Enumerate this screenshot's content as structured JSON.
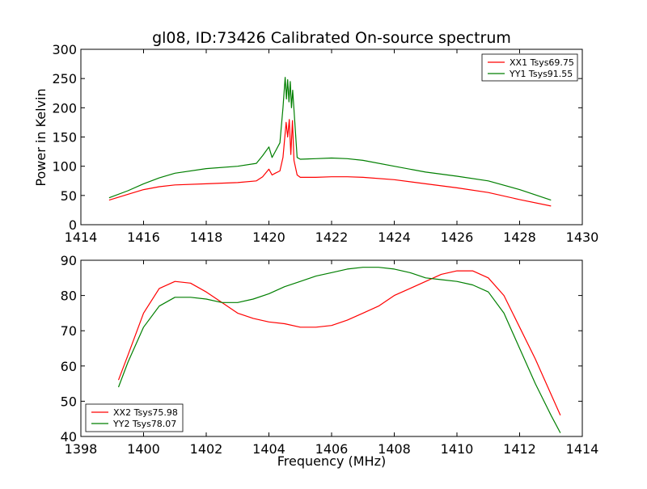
{
  "title": "gl08, ID:73426 Calibrated On-source spectrum",
  "colors": {
    "red": "#ff0000",
    "green": "#007f00"
  },
  "chart_data": [
    {
      "type": "line",
      "title": "gl08, ID:73426 Calibrated On-source spectrum",
      "xlabel": "",
      "ylabel": "Power in Kelvin",
      "xlim": [
        1414,
        1430
      ],
      "ylim": [
        0,
        300
      ],
      "xticks": [
        "1414",
        "1416",
        "1418",
        "1420",
        "1422",
        "1424",
        "1426",
        "1428",
        "1430"
      ],
      "yticks": [
        "0",
        "50",
        "100",
        "150",
        "200",
        "250",
        "300"
      ],
      "grid": false,
      "legend_position": "top-right",
      "series": [
        {
          "name": "XX1 Tsys69.75",
          "color": "#ff0000",
          "x": [
            1414.9,
            1415.5,
            1416,
            1416.5,
            1417,
            1418,
            1419,
            1419.6,
            1419.8,
            1420.0,
            1420.1,
            1420.2,
            1420.35,
            1420.45,
            1420.55,
            1420.6,
            1420.65,
            1420.7,
            1420.75,
            1420.8,
            1420.9,
            1421.0,
            1421.5,
            1422,
            1422.5,
            1423,
            1424,
            1425,
            1426,
            1427,
            1428,
            1429
          ],
          "y": [
            42,
            52,
            60,
            65,
            68,
            70,
            72,
            75,
            82,
            95,
            85,
            88,
            92,
            115,
            175,
            150,
            180,
            120,
            178,
            110,
            85,
            81,
            81,
            82,
            82,
            81,
            77,
            70,
            63,
            55,
            43,
            32
          ]
        },
        {
          "name": "YY1 Tsys91.55",
          "color": "#007f00",
          "x": [
            1414.9,
            1415.5,
            1416,
            1416.5,
            1417,
            1418,
            1419,
            1419.6,
            1419.8,
            1420.0,
            1420.1,
            1420.2,
            1420.35,
            1420.45,
            1420.52,
            1420.56,
            1420.6,
            1420.64,
            1420.68,
            1420.72,
            1420.76,
            1420.82,
            1420.9,
            1421.0,
            1421.5,
            1422,
            1422.5,
            1423,
            1424,
            1425,
            1426,
            1427,
            1428,
            1429
          ],
          "y": [
            46,
            58,
            70,
            80,
            88,
            96,
            100,
            105,
            118,
            133,
            115,
            125,
            140,
            200,
            252,
            215,
            248,
            210,
            245,
            200,
            230,
            180,
            115,
            112,
            113,
            114,
            113,
            110,
            100,
            90,
            83,
            75,
            60,
            42
          ]
        }
      ]
    },
    {
      "type": "line",
      "title": "",
      "xlabel": "Frequency (MHz)",
      "ylabel": "",
      "xlim": [
        1398,
        1414
      ],
      "ylim": [
        40,
        90
      ],
      "xticks": [
        "1398",
        "1400",
        "1402",
        "1404",
        "1406",
        "1408",
        "1410",
        "1412",
        "1414"
      ],
      "yticks": [
        "40",
        "50",
        "60",
        "70",
        "80",
        "90"
      ],
      "grid": false,
      "legend_position": "bottom-left",
      "series": [
        {
          "name": "XX2 Tsys75.98",
          "color": "#ff0000",
          "x": [
            1399.2,
            1399.5,
            1400,
            1400.5,
            1401,
            1401.5,
            1402,
            1402.5,
            1403,
            1403.5,
            1404,
            1404.5,
            1405,
            1405.5,
            1406,
            1406.5,
            1407,
            1407.5,
            1408,
            1408.5,
            1409,
            1409.5,
            1410,
            1410.5,
            1411,
            1411.5,
            1412,
            1412.5,
            1413,
            1413.3
          ],
          "y": [
            56,
            63,
            75,
            82,
            84,
            83.5,
            81,
            78,
            75,
            73.5,
            72.5,
            72,
            71,
            71,
            71.5,
            73,
            75,
            77,
            80,
            82,
            84,
            86,
            87,
            87,
            85,
            80,
            71,
            62,
            52,
            46
          ]
        },
        {
          "name": "YY2 Tsys78.07",
          "color": "#007f00",
          "x": [
            1399.2,
            1399.5,
            1400,
            1400.5,
            1401,
            1401.5,
            1402,
            1402.5,
            1403,
            1403.5,
            1404,
            1404.5,
            1405,
            1405.5,
            1406,
            1406.5,
            1407,
            1407.5,
            1408,
            1408.5,
            1409,
            1409.5,
            1410,
            1410.5,
            1411,
            1411.5,
            1412,
            1412.5,
            1413,
            1413.3
          ],
          "y": [
            54,
            61,
            71,
            77,
            79.5,
            79.5,
            79,
            78,
            78,
            79,
            80.5,
            82.5,
            84,
            85.5,
            86.5,
            87.5,
            88,
            88,
            87.5,
            86.5,
            85,
            84.5,
            84,
            83,
            81,
            75,
            65,
            55,
            46,
            41
          ]
        }
      ]
    }
  ]
}
